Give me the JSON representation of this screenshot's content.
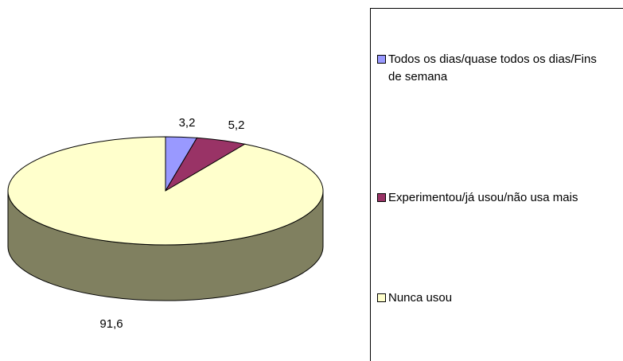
{
  "chart_data": {
    "type": "pie",
    "categories": [
      "Todos os dias/quase todos os dias/Fins de semana",
      "Experimentou/já usou/não usa mais",
      "Nunca usou"
    ],
    "values": [
      3.2,
      5.2,
      91.6
    ],
    "value_labels": [
      "3,2",
      "5,2",
      "91,6"
    ],
    "colors": [
      "#9999ff",
      "#993366",
      "#ffffcc"
    ]
  }
}
